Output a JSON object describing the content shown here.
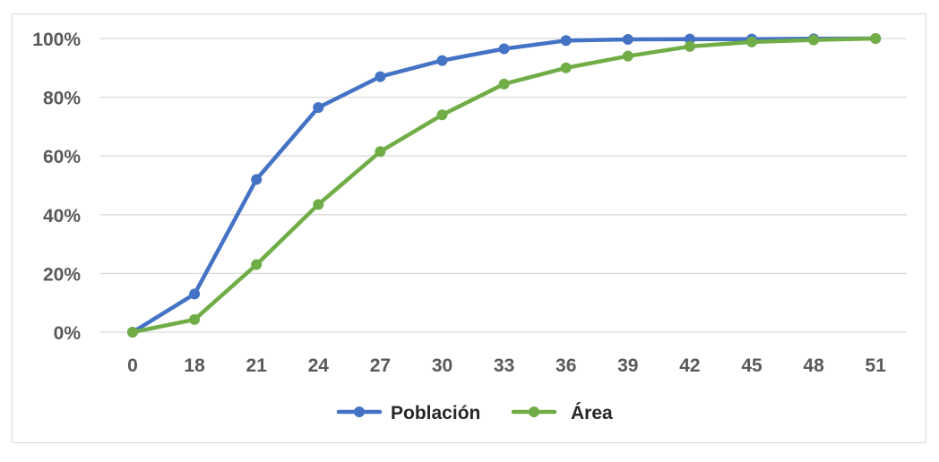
{
  "chart_data": {
    "type": "line",
    "title": "",
    "xlabel": "",
    "ylabel": "",
    "categories": [
      "0",
      "18",
      "21",
      "24",
      "27",
      "30",
      "33",
      "36",
      "39",
      "42",
      "45",
      "48",
      "51"
    ],
    "y_ticks": [
      "0%",
      "20%",
      "40%",
      "60%",
      "80%",
      "100%"
    ],
    "ylim": [
      0,
      100
    ],
    "grid": "horizontal",
    "legend_position": "bottom",
    "series": [
      {
        "name": "Población",
        "color": "#4472c4",
        "values": [
          0,
          13,
          52,
          76.5,
          87,
          92.5,
          96.5,
          99.3,
          99.7,
          99.8,
          99.8,
          99.9,
          100
        ]
      },
      {
        "name": "Área",
        "color": "#70ad47",
        "values": [
          0,
          4.3,
          23,
          43.5,
          61.5,
          74,
          84.5,
          90,
          94,
          97.3,
          98.8,
          99.5,
          100
        ]
      }
    ]
  }
}
